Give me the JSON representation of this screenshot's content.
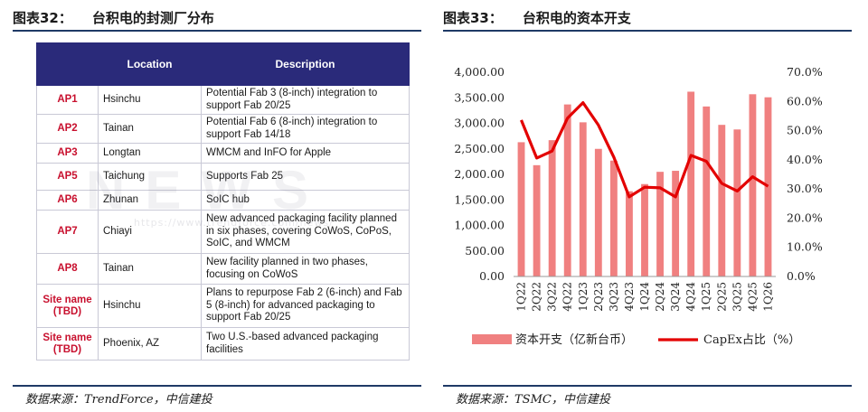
{
  "left": {
    "title_num": "图表32：",
    "title_text": "台积电的封测厂分布",
    "source": "数据来源：TrendForce，中信建投",
    "watermark": "NEWS",
    "watermark_url": "https://www.trendforce.com/news/",
    "table": {
      "headers": [
        "",
        "Location",
        "Description"
      ],
      "rows": [
        {
          "code": "AP1",
          "location": "Hsinchu",
          "description": "Potential Fab 3 (8-inch) integration to support Fab 20/25"
        },
        {
          "code": "AP2",
          "location": "Tainan",
          "description": "Potential Fab 6 (8-inch) integration to support Fab 14/18"
        },
        {
          "code": "AP3",
          "location": "Longtan",
          "description": "WMCM and InFO for Apple"
        },
        {
          "code": "AP5",
          "location": "Taichung",
          "description": "Supports Fab 25"
        },
        {
          "code": "AP6",
          "location": "Zhunan",
          "description": "SoIC hub"
        },
        {
          "code": "AP7",
          "location": "Chiayi",
          "description": "New advanced packaging facility planned in six phases, covering CoWoS, CoPoS, SoIC, and WMCM"
        },
        {
          "code": "AP8",
          "location": "Tainan",
          "description": "New facility planned in two phases, focusing on CoWoS"
        },
        {
          "code": "Site name (TBD)",
          "location": "Hsinchu",
          "description": "Plans to repurpose Fab 2 (6-inch) and Fab 5 (8-inch) for advanced packaging to support Fab 20/25"
        },
        {
          "code": "Site name (TBD)",
          "location": "Phoenix, AZ",
          "description": "Two U.S.-based advanced packaging facilities"
        }
      ]
    }
  },
  "right": {
    "title_num": "图表33：",
    "title_text": "台积电的资本开支",
    "source": "数据来源：TSMC，中信建投"
  },
  "chart_data": {
    "type": "bar",
    "categories": [
      "1Q22",
      "2Q22",
      "3Q22",
      "4Q22",
      "1Q23",
      "2Q23",
      "3Q23",
      "4Q23",
      "1Q24",
      "2Q24",
      "3Q24",
      "4Q24",
      "1Q25",
      "2Q25",
      "3Q25",
      "4Q25",
      "1Q26"
    ],
    "series": [
      {
        "name": "资本开支（亿新台币）",
        "type": "bar",
        "axis": "left",
        "values": [
          2630,
          2180,
          2670,
          3370,
          3020,
          2500,
          2270,
          1670,
          1810,
          2050,
          2070,
          3620,
          3330,
          2970,
          2880,
          3570,
          3510
        ]
      },
      {
        "name": "CapEx占比（%）",
        "type": "line",
        "axis": "right",
        "values": [
          53.6,
          40.6,
          43.0,
          54.3,
          59.6,
          51.9,
          40.9,
          27.3,
          30.6,
          30.4,
          27.3,
          41.5,
          39.5,
          31.9,
          29.3,
          34.2,
          30.9
        ]
      }
    ],
    "y_left": {
      "ticks": [
        "0.00",
        "500.00",
        "1,000.00",
        "1,500.00",
        "2,000.00",
        "2,500.00",
        "3,000.00",
        "3,500.00",
        "4,000.00"
      ],
      "min": 0,
      "max": 4000,
      "step": 500
    },
    "y_right": {
      "ticks": [
        "0.0%",
        "10.0%",
        "20.0%",
        "30.0%",
        "40.0%",
        "50.0%",
        "60.0%",
        "70.0%"
      ],
      "min": 0,
      "max": 70,
      "step": 10
    },
    "legend_position": "bottom",
    "grid": false,
    "colors": {
      "bar": "#f08080",
      "line": "#e30000"
    }
  }
}
